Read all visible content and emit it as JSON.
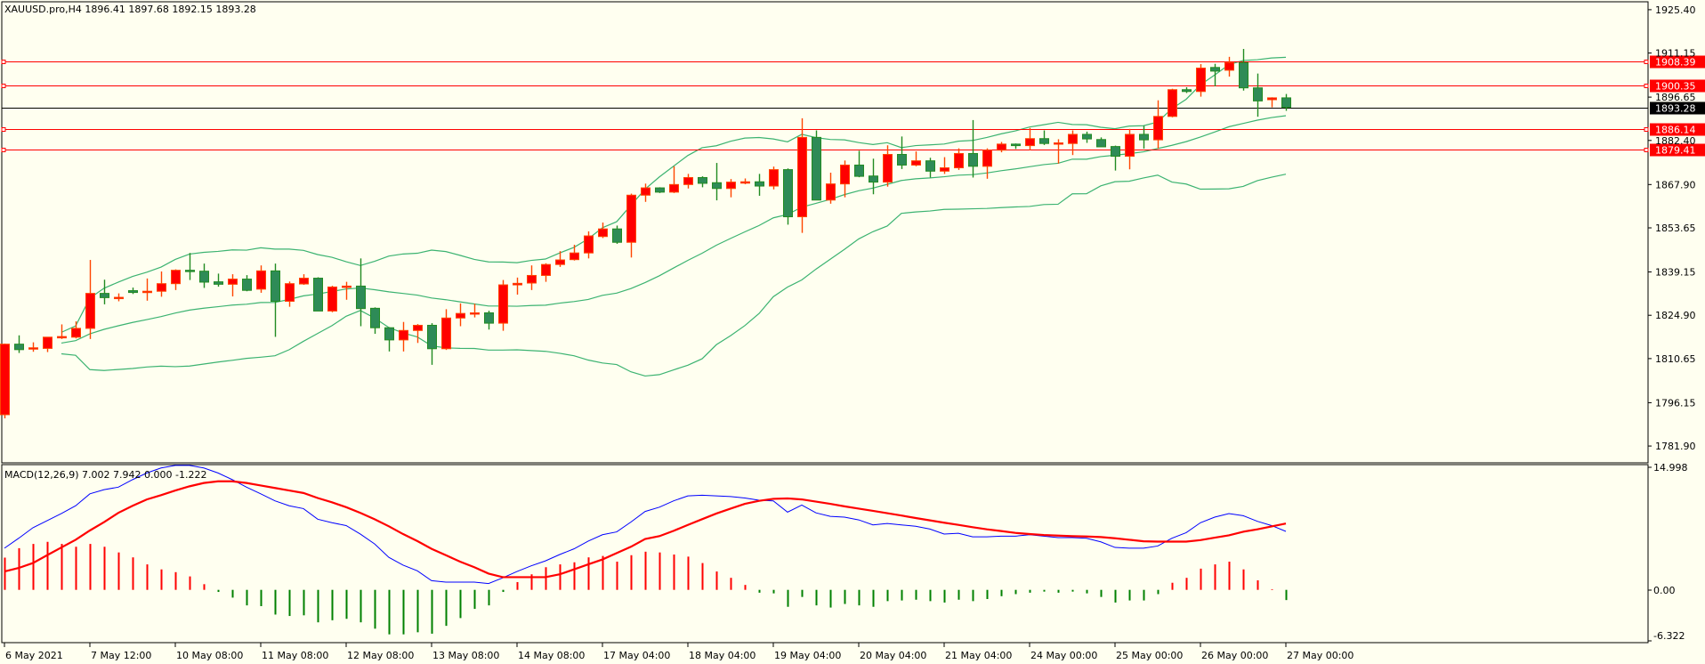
{
  "header": {
    "symbol_label": "XAUUSD.pro,H4  1896.41 1897.68 1892.15 1893.28",
    "macd_label": "MACD(12,26,9) 7.002 7.942 0.000 -1.222"
  },
  "colors": {
    "background": "#fffff0",
    "bull_fill": "#ff0000",
    "bull_border": "#ff4500",
    "bear_fill": "#2e8b57",
    "bear_border": "#228b22",
    "bands": "#3cb371",
    "level_line": "#ff0000",
    "macd_main": "#0000ff",
    "macd_signal": "#ff0000",
    "hist_pos": "#ff0000",
    "hist_neg": "#008000"
  },
  "price_axis": {
    "ticks": [
      "1925.40",
      "1911.15",
      "1896.65",
      "1882.40",
      "1867.90",
      "1853.65",
      "1839.15",
      "1824.90",
      "1810.65",
      "1796.15",
      "1781.90"
    ]
  },
  "levels": [
    {
      "value": 1908.39,
      "label": "1908.39"
    },
    {
      "value": 1900.35,
      "label": "1900.35"
    },
    {
      "value": 1886.14,
      "label": "1886.14"
    },
    {
      "value": 1879.41,
      "label": "1879.41"
    }
  ],
  "current_price": {
    "value": 1893.28,
    "label": "1893.28"
  },
  "macd_axis": {
    "top": 14.998,
    "top_label": "14.998",
    "zero_label": "0.00",
    "bottom": -6.322,
    "bottom_label": "-6.322"
  },
  "time_axis": [
    {
      "bar": 0,
      "label": "6 May 2021"
    },
    {
      "bar": 6,
      "label": "7 May 12:00"
    },
    {
      "bar": 12,
      "label": "10 May 08:00"
    },
    {
      "bar": 18,
      "label": "11 May 08:00"
    },
    {
      "bar": 24,
      "label": "12 May 08:00"
    },
    {
      "bar": 30,
      "label": "13 May 08:00"
    },
    {
      "bar": 36,
      "label": "14 May 08:00"
    },
    {
      "bar": 42,
      "label": "17 May 04:00"
    },
    {
      "bar": 48,
      "label": "18 May 04:00"
    },
    {
      "bar": 54,
      "label": "19 May 04:00"
    },
    {
      "bar": 60,
      "label": "20 May 04:00"
    },
    {
      "bar": 66,
      "label": "21 May 04:00"
    },
    {
      "bar": 72,
      "label": "24 May 00:00"
    },
    {
      "bar": 78,
      "label": "25 May 00:00"
    },
    {
      "bar": 84,
      "label": "26 May 00:00"
    },
    {
      "bar": 90,
      "label": "27 May 00:00"
    }
  ],
  "chart_data": {
    "type": "candlestick",
    "title": "XAUUSD.pro,H4",
    "ylim": [
      1776.4,
      1927.7
    ],
    "ohlc_fields": [
      "open",
      "high",
      "low",
      "close"
    ],
    "candles": [
      [
        1792.2,
        1815.6,
        1791.0,
        1815.4
      ],
      [
        1815.4,
        1818.3,
        1812.5,
        1813.6
      ],
      [
        1814.0,
        1816.0,
        1812.9,
        1814.2
      ],
      [
        1814.0,
        1817.7,
        1812.8,
        1817.7
      ],
      [
        1817.7,
        1821.9,
        1817.1,
        1817.9
      ],
      [
        1817.7,
        1822.9,
        1817.3,
        1820.6
      ],
      [
        1820.6,
        1843.1,
        1817.1,
        1832.1
      ],
      [
        1832.1,
        1836.6,
        1828.5,
        1830.7
      ],
      [
        1830.6,
        1832.1,
        1829.5,
        1830.8
      ],
      [
        1833.0,
        1834.0,
        1831.9,
        1832.4
      ],
      [
        1832.7,
        1837.0,
        1829.7,
        1832.8
      ],
      [
        1832.8,
        1839.3,
        1831.0,
        1835.3
      ],
      [
        1835.3,
        1840.0,
        1833.2,
        1839.7
      ],
      [
        1839.7,
        1845.4,
        1836.5,
        1839.4
      ],
      [
        1839.4,
        1841.9,
        1833.9,
        1835.8
      ],
      [
        1835.9,
        1838.6,
        1834.3,
        1835.1
      ],
      [
        1835.1,
        1838.4,
        1831.1,
        1836.8
      ],
      [
        1836.8,
        1838.1,
        1832.8,
        1833.1
      ],
      [
        1833.5,
        1841.3,
        1832.3,
        1839.5
      ],
      [
        1839.5,
        1841.9,
        1817.8,
        1829.5
      ],
      [
        1829.5,
        1836.0,
        1827.7,
        1835.3
      ],
      [
        1835.2,
        1838.4,
        1834.9,
        1837.1
      ],
      [
        1837.1,
        1837.4,
        1826.3,
        1826.3
      ],
      [
        1826.3,
        1834.6,
        1825.9,
        1834.2
      ],
      [
        1834.3,
        1835.9,
        1830.0,
        1834.5
      ],
      [
        1834.5,
        1843.6,
        1821.3,
        1827.1
      ],
      [
        1827.2,
        1827.5,
        1818.8,
        1820.8
      ],
      [
        1820.8,
        1821.0,
        1813.0,
        1816.8
      ],
      [
        1816.8,
        1822.7,
        1813.0,
        1819.9
      ],
      [
        1819.9,
        1822.0,
        1815.8,
        1821.6
      ],
      [
        1821.6,
        1822.3,
        1808.6,
        1813.9
      ],
      [
        1813.9,
        1826.9,
        1813.5,
        1824.0
      ],
      [
        1824.0,
        1828.8,
        1821.3,
        1825.5
      ],
      [
        1825.5,
        1828.7,
        1824.2,
        1825.7
      ],
      [
        1825.7,
        1826.4,
        1820.2,
        1822.3
      ],
      [
        1822.3,
        1836.5,
        1819.8,
        1834.9
      ],
      [
        1834.9,
        1837.3,
        1831.7,
        1835.4
      ],
      [
        1835.5,
        1841.3,
        1833.2,
        1838.0
      ],
      [
        1838.0,
        1842.0,
        1835.9,
        1841.6
      ],
      [
        1841.6,
        1846.0,
        1840.8,
        1843.1
      ],
      [
        1843.2,
        1848.1,
        1842.9,
        1845.4
      ],
      [
        1845.4,
        1852.5,
        1843.6,
        1851.0
      ],
      [
        1850.8,
        1855.4,
        1850.3,
        1853.3
      ],
      [
        1853.3,
        1854.4,
        1848.4,
        1848.9
      ],
      [
        1848.9,
        1864.9,
        1843.9,
        1864.4
      ],
      [
        1864.4,
        1868.2,
        1862.2,
        1866.8
      ],
      [
        1866.8,
        1867.0,
        1865.1,
        1865.4
      ],
      [
        1865.4,
        1873.9,
        1865.1,
        1867.9
      ],
      [
        1867.9,
        1871.4,
        1866.6,
        1870.2
      ],
      [
        1870.2,
        1870.6,
        1867.0,
        1868.3
      ],
      [
        1868.5,
        1875.0,
        1862.7,
        1866.6
      ],
      [
        1866.6,
        1869.7,
        1863.7,
        1868.7
      ],
      [
        1868.7,
        1869.9,
        1868.0,
        1868.8
      ],
      [
        1868.8,
        1871.4,
        1864.2,
        1867.4
      ],
      [
        1867.4,
        1873.8,
        1866.3,
        1872.8
      ],
      [
        1872.8,
        1873.2,
        1854.7,
        1857.3
      ],
      [
        1857.3,
        1889.7,
        1852.0,
        1883.4
      ],
      [
        1883.4,
        1885.7,
        1862.8,
        1862.8
      ],
      [
        1862.8,
        1871.8,
        1861.6,
        1868.1
      ],
      [
        1868.1,
        1875.8,
        1863.7,
        1874.3
      ],
      [
        1874.3,
        1879.0,
        1870.3,
        1870.6
      ],
      [
        1870.7,
        1876.4,
        1864.7,
        1868.7
      ],
      [
        1868.7,
        1880.8,
        1867.2,
        1877.8
      ],
      [
        1877.8,
        1883.7,
        1873.0,
        1874.3
      ],
      [
        1874.3,
        1878.8,
        1873.9,
        1875.7
      ],
      [
        1875.7,
        1876.7,
        1870.2,
        1872.3
      ],
      [
        1872.3,
        1876.9,
        1871.4,
        1873.4
      ],
      [
        1873.4,
        1879.8,
        1872.7,
        1878.1
      ],
      [
        1878.1,
        1889.1,
        1870.2,
        1873.9
      ],
      [
        1873.9,
        1879.8,
        1869.8,
        1879.2
      ],
      [
        1879.2,
        1881.9,
        1878.5,
        1881.2
      ],
      [
        1881.2,
        1881.4,
        1879.6,
        1880.7
      ],
      [
        1880.7,
        1886.5,
        1879.2,
        1883.0
      ],
      [
        1883.0,
        1885.7,
        1880.9,
        1881.4
      ],
      [
        1881.5,
        1882.8,
        1874.8,
        1881.6
      ],
      [
        1881.4,
        1885.7,
        1877.6,
        1884.4
      ],
      [
        1884.4,
        1885.3,
        1881.6,
        1882.9
      ],
      [
        1882.7,
        1883.4,
        1880.3,
        1880.3
      ],
      [
        1880.4,
        1880.7,
        1872.5,
        1877.2
      ],
      [
        1877.2,
        1886.2,
        1872.9,
        1884.4
      ],
      [
        1884.4,
        1887.2,
        1879.7,
        1882.6
      ],
      [
        1882.6,
        1895.6,
        1879.7,
        1890.3
      ],
      [
        1890.3,
        1899.4,
        1890.0,
        1899.1
      ],
      [
        1899.1,
        1899.9,
        1898.0,
        1898.5
      ],
      [
        1898.5,
        1907.5,
        1896.8,
        1906.2
      ],
      [
        1906.4,
        1907.6,
        1900.2,
        1905.2
      ],
      [
        1905.5,
        1909.9,
        1903.4,
        1908.0
      ],
      [
        1908.0,
        1912.5,
        1898.8,
        1899.7
      ],
      [
        1899.7,
        1904.4,
        1890.2,
        1895.4
      ],
      [
        1895.8,
        1896.6,
        1893.3,
        1896.41
      ],
      [
        1896.41,
        1897.68,
        1892.15,
        1893.28
      ]
    ],
    "bollinger": {
      "period": 20,
      "deviation": 2
    },
    "macd": {
      "params": [
        12,
        26,
        9
      ],
      "ylim": [
        -6.322,
        14.998
      ],
      "main": [
        4.99,
        6.18,
        7.44,
        8.29,
        9.14,
        10.07,
        11.5,
        12.0,
        12.3,
        13.2,
        14.0,
        14.6,
        14.9,
        14.9,
        14.6,
        14.0,
        13.2,
        12.3,
        11.5,
        10.66,
        10.07,
        9.73,
        8.46,
        8.04,
        7.7,
        6.68,
        5.5,
        3.89,
        2.96,
        2.28,
        1.1,
        0.93,
        0.93,
        0.93,
        0.76,
        1.44,
        2.2,
        2.88,
        3.47,
        4.23,
        4.91,
        5.84,
        6.6,
        6.94,
        8.12,
        9.39,
        9.9,
        10.66,
        11.25,
        11.34,
        11.25,
        11.17,
        11.0,
        10.74,
        10.66,
        9.31,
        10.15,
        9.22,
        8.8,
        8.71,
        8.38,
        7.78,
        7.95,
        7.78,
        7.61,
        7.28,
        6.68,
        6.77,
        6.35,
        6.35,
        6.43,
        6.43,
        6.6,
        6.43,
        6.26,
        6.26,
        6.18,
        5.75,
        5.08,
        4.99,
        4.99,
        5.25,
        6.18,
        6.85,
        8.04,
        8.71,
        9.14,
        8.88,
        8.21,
        7.7,
        7.002
      ],
      "signal": [
        2.2,
        2.62,
        3.21,
        4.15,
        5.08,
        6.0,
        7.11,
        8.12,
        9.22,
        10.07,
        10.83,
        11.34,
        11.9,
        12.4,
        12.8,
        13.0,
        13.0,
        12.8,
        12.5,
        12.2,
        11.9,
        11.6,
        11.0,
        10.49,
        9.9,
        9.22,
        8.46,
        7.61,
        6.68,
        5.84,
        4.91,
        4.15,
        3.38,
        2.71,
        1.95,
        1.52,
        1.52,
        1.52,
        1.52,
        1.86,
        2.45,
        3.05,
        3.64,
        4.4,
        5.16,
        6.09,
        6.43,
        7.07,
        7.78,
        8.46,
        9.14,
        9.73,
        10.3,
        10.66,
        10.9,
        10.95,
        10.83,
        10.57,
        10.3,
        10.0,
        9.73,
        9.46,
        9.18,
        8.9,
        8.6,
        8.32,
        8.04,
        7.78,
        7.5,
        7.25,
        7.04,
        6.82,
        6.68,
        6.57,
        6.5,
        6.43,
        6.39,
        6.32,
        6.18,
        6.0,
        5.82,
        5.78,
        5.78,
        5.78,
        5.96,
        6.25,
        6.53,
        6.96,
        7.25,
        7.6,
        7.942
      ],
      "histogram": [
        3.86,
        4.99,
        5.5,
        5.75,
        5.5,
        5.16,
        5.5,
        5.16,
        4.48,
        3.89,
        3.05,
        2.45,
        2.12,
        1.61,
        0.68,
        -0.25,
        -0.93,
        -1.86,
        -1.95,
        -2.96,
        -3.13,
        -3.05,
        -3.89,
        -3.64,
        -3.47,
        -3.89,
        -4.65,
        -5.33,
        -5.33,
        -5.08,
        -5.25,
        -4.31,
        -3.38,
        -2.28,
        -1.86,
        -0.25,
        0.93,
        1.86,
        2.71,
        3.05,
        3.3,
        3.89,
        4.06,
        3.38,
        4.15,
        4.57,
        4.48,
        4.23,
        3.98,
        3.21,
        2.2,
        1.44,
        0.59,
        -0.34,
        -0.42,
        -2.03,
        -0.85,
        -1.86,
        -2.12,
        -1.69,
        -1.86,
        -2.03,
        -1.35,
        -1.27,
        -1.18,
        -1.35,
        -1.52,
        -1.18,
        -1.35,
        -1.1,
        -0.76,
        -0.51,
        -0.34,
        -0.21,
        -0.34,
        -0.21,
        -0.42,
        -0.85,
        -1.52,
        -1.27,
        -1.27,
        -0.51,
        0.85,
        1.44,
        2.54,
        3.05,
        3.38,
        2.45,
        1.14,
        0.08,
        -1.222
      ]
    }
  }
}
